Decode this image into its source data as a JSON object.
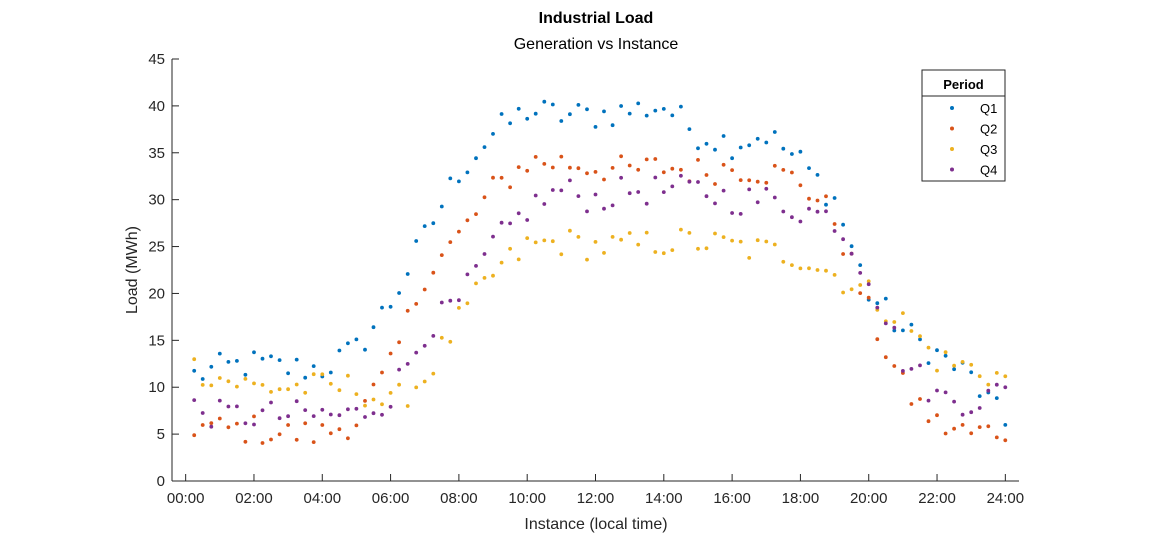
{
  "chart_data": {
    "type": "scatter",
    "title": "Industrial Load",
    "subtitle": "Generation vs Instance",
    "xlabel": "Instance (local time)",
    "ylabel": "Load (MWh)",
    "xlim": [
      -0.4,
      24.4
    ],
    "ylim": [
      0,
      45
    ],
    "x_ticks": [
      0,
      2,
      4,
      6,
      8,
      10,
      12,
      14,
      16,
      18,
      20,
      22,
      24
    ],
    "x_tick_labels": [
      "00:00",
      "02:00",
      "04:00",
      "06:00",
      "08:00",
      "10:00",
      "12:00",
      "14:00",
      "16:00",
      "18:00",
      "20:00",
      "22:00",
      "24:00"
    ],
    "y_ticks": [
      0,
      5,
      10,
      15,
      20,
      25,
      30,
      35,
      40,
      45
    ],
    "y_tick_labels": [
      "0",
      "5",
      "10",
      "15",
      "20",
      "25",
      "30",
      "35",
      "40",
      "45"
    ],
    "grid": false,
    "legend": {
      "title": "Period",
      "position": "top-right"
    },
    "x_step_hours": 0.25,
    "series": [
      {
        "name": "Q1",
        "color": "#0072BD",
        "anchors": [
          [
            0,
            11
          ],
          [
            1,
            12
          ],
          [
            2,
            12.5
          ],
          [
            3,
            12
          ],
          [
            4,
            12
          ],
          [
            5,
            14
          ],
          [
            6,
            19
          ],
          [
            7,
            26
          ],
          [
            8,
            33
          ],
          [
            9,
            37
          ],
          [
            10,
            39.5
          ],
          [
            11,
            39
          ],
          [
            12,
            39
          ],
          [
            13,
            39.5
          ],
          [
            14,
            40
          ],
          [
            15,
            37
          ],
          [
            16,
            36
          ],
          [
            17,
            37
          ],
          [
            18,
            34
          ],
          [
            19,
            30
          ],
          [
            20,
            20
          ],
          [
            21,
            16
          ],
          [
            22,
            13.5
          ],
          [
            23,
            11
          ],
          [
            24,
            6
          ]
        ]
      },
      {
        "name": "Q2",
        "color": "#D95319",
        "anchors": [
          [
            0,
            6
          ],
          [
            1,
            5.5
          ],
          [
            2,
            5.5
          ],
          [
            3,
            5
          ],
          [
            4,
            5
          ],
          [
            5,
            6.5
          ],
          [
            6,
            12
          ],
          [
            7,
            22
          ],
          [
            8,
            26
          ],
          [
            9,
            31
          ],
          [
            10,
            34
          ],
          [
            11,
            34
          ],
          [
            12,
            33.5
          ],
          [
            13,
            33
          ],
          [
            14,
            33.5
          ],
          [
            15,
            33
          ],
          [
            16,
            33.5
          ],
          [
            17,
            33
          ],
          [
            18,
            32
          ],
          [
            19,
            28
          ],
          [
            20,
            18
          ],
          [
            21,
            10
          ],
          [
            22,
            6
          ],
          [
            23,
            5
          ],
          [
            24,
            5.5
          ]
        ]
      },
      {
        "name": "Q3",
        "color": "#EDB120",
        "anchors": [
          [
            0,
            12.5
          ],
          [
            1,
            11
          ],
          [
            2,
            10
          ],
          [
            3,
            10
          ],
          [
            4,
            10
          ],
          [
            5,
            10
          ],
          [
            6,
            8
          ],
          [
            7,
            11
          ],
          [
            8,
            17
          ],
          [
            9,
            22
          ],
          [
            10,
            25
          ],
          [
            11,
            25.5
          ],
          [
            12,
            25
          ],
          [
            13,
            25
          ],
          [
            14,
            25.5
          ],
          [
            15,
            25.5
          ],
          [
            16,
            25
          ],
          [
            17,
            24.5
          ],
          [
            18,
            24
          ],
          [
            19,
            22
          ],
          [
            20,
            20
          ],
          [
            21,
            17
          ],
          [
            22,
            13
          ],
          [
            23,
            12
          ],
          [
            24,
            11
          ]
        ]
      },
      {
        "name": "Q4",
        "color": "#7E2F8E",
        "anchors": [
          [
            0,
            8
          ],
          [
            1,
            7
          ],
          [
            2,
            7
          ],
          [
            3,
            7
          ],
          [
            4,
            7
          ],
          [
            5,
            7
          ],
          [
            6,
            9
          ],
          [
            7,
            16
          ],
          [
            8,
            19
          ],
          [
            9,
            25
          ],
          [
            10,
            29
          ],
          [
            11,
            31
          ],
          [
            12,
            30
          ],
          [
            13,
            31
          ],
          [
            14,
            31
          ],
          [
            15,
            31
          ],
          [
            16,
            30
          ],
          [
            17,
            30
          ],
          [
            18,
            29
          ],
          [
            19,
            28
          ],
          [
            20,
            22
          ],
          [
            21,
            13
          ],
          [
            22,
            9
          ],
          [
            23,
            8.5
          ],
          [
            24,
            9.5
          ]
        ]
      }
    ]
  }
}
